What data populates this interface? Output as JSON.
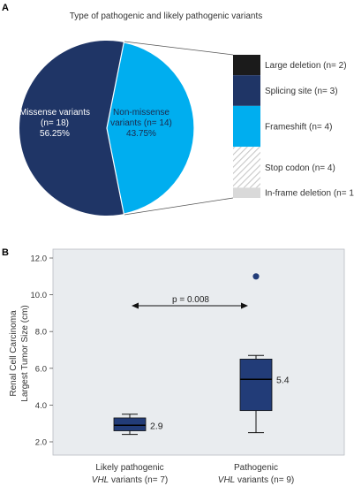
{
  "colors": {
    "navy": "#1f3566",
    "cyan": "#00aeef",
    "black": "#1b1b1b",
    "hatch": "#c8c8c8",
    "light_gray": "#d9d9d9",
    "plot_bg": "#e9ecef",
    "box_fill": "#223c78"
  },
  "chart_data": [
    {
      "panel": "A",
      "type": "pie",
      "title": "Type of pathogenic and likely pathogenic variants",
      "slices": [
        {
          "label": "Missense variants",
          "count_label": "(n= 18)",
          "percent_label": "56.25%",
          "value": 56.25
        },
        {
          "label": "Non-missense",
          "count_label": "variants (n= 14)",
          "percent_label": "43.75%",
          "value": 43.75
        }
      ],
      "breakdown": {
        "type": "stacked-bar",
        "of": "Non-missense",
        "segments": [
          {
            "label": "Large deletion (n= 2)",
            "value": 2,
            "color": "#1b1b1b",
            "pattern": "solid"
          },
          {
            "label": "Splicing site (n= 3)",
            "value": 3,
            "color": "#1f3566",
            "pattern": "solid"
          },
          {
            "label": "Frameshift (n= 4)",
            "value": 4,
            "color": "#00aeef",
            "pattern": "solid"
          },
          {
            "label": "Stop codon (n= 4)",
            "value": 4,
            "color": "#c8c8c8",
            "pattern": "hatch"
          },
          {
            "label": "In-frame deletion (n= 1)",
            "value": 1,
            "color": "#d9d9d9",
            "pattern": "solid"
          }
        ]
      }
    },
    {
      "panel": "B",
      "type": "box",
      "ylabel_line1": "Renal Cell Carcinoma",
      "ylabel_line2": "Largest Tumor Size (cm)",
      "ylim": [
        1.6,
        12.6
      ],
      "yticks": [
        "2.0",
        "4.0",
        "6.0",
        "8.0",
        "10.0",
        "12.0"
      ],
      "categories": [
        {
          "line1": "Likely pathogenic",
          "gene": "VHL",
          "rest": " variants (n= 7)"
        },
        {
          "line1": "Pathogenic",
          "gene": "VHL",
          "rest": " variants (n= 9)"
        }
      ],
      "boxes": [
        {
          "whisker_low": 2.4,
          "q1": 2.6,
          "median": 2.9,
          "q3": 3.3,
          "whisker_high": 3.5,
          "median_label": "2.9",
          "outliers": []
        },
        {
          "whisker_low": 2.5,
          "q1": 3.7,
          "median": 5.4,
          "q3": 6.5,
          "whisker_high": 6.7,
          "median_label": "5.4",
          "outliers": [
            11.0
          ]
        }
      ],
      "annotation": "p = 0.008"
    }
  ]
}
